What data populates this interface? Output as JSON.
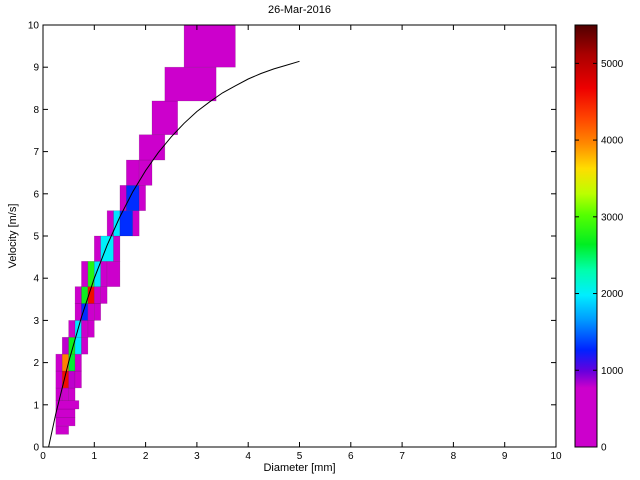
{
  "chart_data": {
    "type": "heatmap",
    "title": "26-Mar-2016",
    "xlabel": "Diameter [mm]",
    "ylabel": "Velocity [m/s]",
    "xlim": [
      0,
      10
    ],
    "ylim": [
      0,
      10
    ],
    "xticks": [
      0,
      1,
      2,
      3,
      4,
      5,
      6,
      7,
      8,
      9,
      10
    ],
    "yticks": [
      0,
      1,
      2,
      3,
      4,
      5,
      6,
      7,
      8,
      9,
      10
    ],
    "grid": false,
    "colorbar": {
      "min": 0,
      "max": 5500,
      "ticks": [
        0,
        1000,
        2000,
        3000,
        4000,
        5000
      ]
    },
    "colormap": [
      [
        0.0,
        "#CC00CC"
      ],
      [
        0.14,
        "#CC00CC"
      ],
      [
        0.18,
        "#6600DD"
      ],
      [
        0.23,
        "#0022FF"
      ],
      [
        0.3,
        "#0099FF"
      ],
      [
        0.36,
        "#00EEFF"
      ],
      [
        0.42,
        "#00FFAA"
      ],
      [
        0.48,
        "#00EE22"
      ],
      [
        0.55,
        "#55FF00"
      ],
      [
        0.6,
        "#BBFF00"
      ],
      [
        0.66,
        "#FFDD00"
      ],
      [
        0.72,
        "#FF8800"
      ],
      [
        0.78,
        "#FF4400"
      ],
      [
        0.85,
        "#EE0000"
      ],
      [
        0.93,
        "#AA0000"
      ],
      [
        1.0,
        "#500000"
      ]
    ],
    "cells_format": [
      "d_min_mm",
      "d_max_mm",
      "v_min_ms",
      "v_max_ms",
      "count"
    ],
    "cells": [
      [
        0.25,
        0.5,
        0.3,
        0.5,
        300
      ],
      [
        0.25,
        0.625,
        0.5,
        0.7,
        400
      ],
      [
        0.25,
        0.625,
        0.7,
        0.9,
        500
      ],
      [
        0.25,
        0.7,
        0.9,
        1.1,
        550
      ],
      [
        0.25,
        0.375,
        1.1,
        1.4,
        450
      ],
      [
        0.375,
        0.5,
        1.1,
        1.4,
        700
      ],
      [
        0.5,
        0.625,
        1.1,
        1.4,
        500
      ],
      [
        0.25,
        0.375,
        1.4,
        1.8,
        500
      ],
      [
        0.375,
        0.5,
        1.4,
        1.8,
        4600
      ],
      [
        0.5,
        0.625,
        1.4,
        1.8,
        800
      ],
      [
        0.625,
        0.75,
        1.4,
        1.8,
        300
      ],
      [
        0.25,
        0.375,
        1.8,
        2.2,
        500
      ],
      [
        0.375,
        0.5,
        1.8,
        2.2,
        4000
      ],
      [
        0.5,
        0.625,
        1.8,
        2.2,
        2600
      ],
      [
        0.625,
        0.75,
        1.8,
        2.2,
        400
      ],
      [
        0.375,
        0.5,
        2.2,
        2.6,
        800
      ],
      [
        0.5,
        0.625,
        2.2,
        2.6,
        2700
      ],
      [
        0.625,
        0.75,
        2.2,
        2.6,
        1950
      ],
      [
        0.75,
        0.875,
        2.2,
        2.6,
        400
      ],
      [
        0.5,
        0.625,
        2.6,
        3.0,
        700
      ],
      [
        0.625,
        0.75,
        2.6,
        3.0,
        1950
      ],
      [
        0.75,
        0.875,
        2.6,
        3.0,
        500
      ],
      [
        0.875,
        1.0,
        2.6,
        3.0,
        300
      ],
      [
        0.625,
        0.75,
        3.0,
        3.4,
        650
      ],
      [
        0.75,
        0.875,
        3.0,
        3.4,
        1300
      ],
      [
        0.875,
        1.0,
        3.0,
        3.4,
        500
      ],
      [
        1.0,
        1.125,
        3.0,
        3.4,
        300
      ],
      [
        0.625,
        0.75,
        3.4,
        3.8,
        300
      ],
      [
        0.75,
        0.875,
        3.4,
        3.8,
        2700
      ],
      [
        0.875,
        1.0,
        3.4,
        3.8,
        4600
      ],
      [
        1.0,
        1.125,
        3.4,
        3.8,
        450
      ],
      [
        1.125,
        1.25,
        3.4,
        3.8,
        300
      ],
      [
        0.75,
        0.875,
        3.8,
        4.4,
        550
      ],
      [
        0.875,
        1.0,
        3.8,
        4.4,
        2800
      ],
      [
        1.0,
        1.125,
        3.8,
        4.4,
        1950
      ],
      [
        1.125,
        1.25,
        3.8,
        4.4,
        500
      ],
      [
        1.25,
        1.5,
        3.8,
        4.4,
        300
      ],
      [
        1.0,
        1.125,
        4.4,
        5.0,
        650
      ],
      [
        1.125,
        1.375,
        4.4,
        5.0,
        2000
      ],
      [
        1.375,
        1.5,
        4.4,
        5.0,
        500
      ],
      [
        1.25,
        1.375,
        5.0,
        5.6,
        550
      ],
      [
        1.375,
        1.5,
        5.0,
        5.6,
        1950
      ],
      [
        1.5,
        1.75,
        5.0,
        5.6,
        1300
      ],
      [
        1.75,
        1.875,
        5.0,
        5.6,
        350
      ],
      [
        1.5,
        1.625,
        5.6,
        6.2,
        550
      ],
      [
        1.625,
        1.875,
        5.6,
        6.2,
        1300
      ],
      [
        1.875,
        2.0,
        5.6,
        6.2,
        350
      ],
      [
        1.625,
        1.875,
        6.2,
        6.8,
        600
      ],
      [
        1.875,
        2.125,
        6.2,
        6.8,
        400
      ],
      [
        1.875,
        2.375,
        6.8,
        7.4,
        500
      ],
      [
        2.125,
        2.625,
        7.4,
        8.2,
        500
      ],
      [
        2.375,
        3.375,
        8.2,
        9.0,
        450
      ],
      [
        2.75,
        3.75,
        9.0,
        10.0,
        550
      ]
    ],
    "curve": {
      "name": "terminal-velocity-curve",
      "color": "#000000",
      "points": [
        [
          0.11,
          0.0
        ],
        [
          0.25,
          0.79
        ],
        [
          0.5,
          2.02
        ],
        [
          0.75,
          3.08
        ],
        [
          1.0,
          4.0
        ],
        [
          1.25,
          4.78
        ],
        [
          1.5,
          5.46
        ],
        [
          1.75,
          6.05
        ],
        [
          2.0,
          6.55
        ],
        [
          2.25,
          6.98
        ],
        [
          2.5,
          7.35
        ],
        [
          2.75,
          7.67
        ],
        [
          3.0,
          7.95
        ],
        [
          3.25,
          8.18
        ],
        [
          3.5,
          8.39
        ],
        [
          3.75,
          8.56
        ],
        [
          4.0,
          8.72
        ],
        [
          4.25,
          8.85
        ],
        [
          4.5,
          8.96
        ],
        [
          4.75,
          9.05
        ],
        [
          5.0,
          9.14
        ]
      ]
    }
  }
}
